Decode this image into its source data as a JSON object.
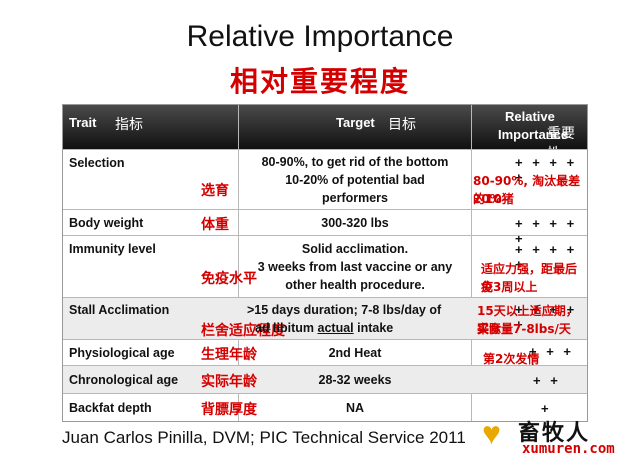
{
  "title_en": "Relative Importance",
  "title_zh": "相对重要程度",
  "header": {
    "trait": "Trait",
    "trait_zh": "指标",
    "target": "Target",
    "target_zh": "目标",
    "rel1": "Relative",
    "rel2": "Importance",
    "rel_zh": "重要性"
  },
  "rows": [
    {
      "trait": "Selection",
      "trait_zh": "选育",
      "target": [
        "80-90%, to get rid of the bottom",
        "10-20% of potential bad",
        "performers"
      ],
      "plus": "+ + + + +",
      "note": [
        "80-90%, 淘汰最差的10-",
        "20%猪"
      ]
    },
    {
      "trait": "Body weight",
      "trait_zh": "体重",
      "target": [
        "300-320 lbs"
      ],
      "plus": "+ + + + +"
    },
    {
      "trait": "Immunity level",
      "trait_zh": "免疫水平",
      "target": [
        "Solid acclimation.",
        "3 weeks from last vaccine or any",
        "other health procedure."
      ],
      "plus": "+ + + + +",
      "note": [
        "适应力强，距最后免",
        "疫3周以上"
      ]
    },
    {
      "trait": "Stall Acclimation",
      "trait_zh": "栏舍适应程度",
      "target_a": ">15 days duration; 7-8 lbs/day of",
      "target_b1": "ad libitum ",
      "target_b2": "actual",
      "target_b3": " intake",
      "plus": "+ + + + +",
      "note": [
        "15天以上适应期，实际",
        "采食量7-8lbs/天"
      ]
    },
    {
      "trait": "Physiological age",
      "trait_zh": "生理年龄",
      "target": [
        "2nd Heat"
      ],
      "plus": "+ + + +",
      "note": [
        "第2次发情"
      ]
    },
    {
      "trait": "Chronological age",
      "trait_zh": "实际年龄",
      "target": [
        "28-32 weeks"
      ],
      "plus": "+ +"
    },
    {
      "trait": "Backfat depth",
      "trait_zh": "背膘厚度",
      "target": [
        "NA"
      ],
      "plus": "+"
    }
  ],
  "footer": "Juan Carlos Pinilla, DVM; PIC Technical Service 2011",
  "logo": {
    "name": "畜牧人",
    "url": "xumuren.com"
  }
}
